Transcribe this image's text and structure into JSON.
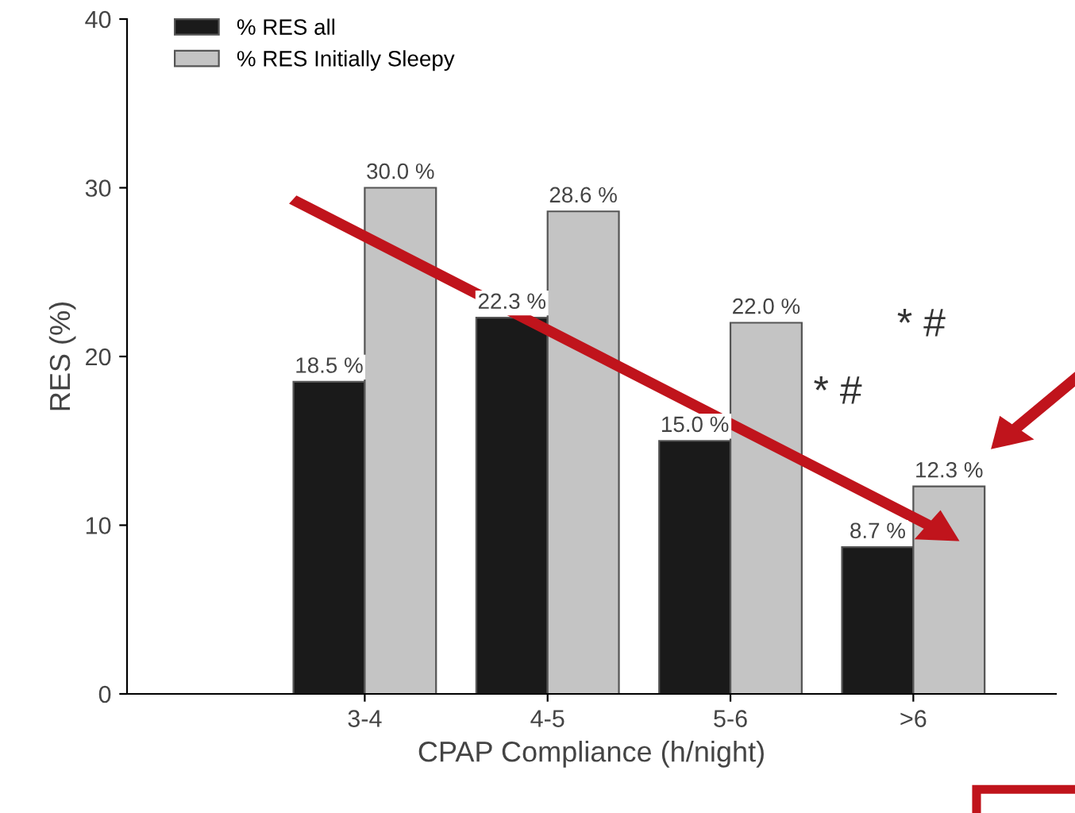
{
  "chart_data": {
    "type": "bar",
    "xlabel": "CPAP Compliance (h/night)",
    "ylabel": "RES (%)",
    "categories": [
      "3-4",
      "4-5",
      "5-6",
      ">6"
    ],
    "series": [
      {
        "name": "% RES all",
        "color": "#1a1a1a",
        "values": [
          18.5,
          22.3,
          15.0,
          8.7
        ],
        "value_labels": [
          "18.5 %",
          "22.3 %",
          "15.0 %",
          "8.7 %"
        ]
      },
      {
        "name": "% RES Initially Sleepy",
        "color": "#c4c4c4",
        "values": [
          30.0,
          28.6,
          22.0,
          12.3
        ],
        "value_labels": [
          "30.0 %",
          "28.6 %",
          "22.0 %",
          "12.3 %"
        ]
      }
    ],
    "ylim": [
      0,
      40
    ],
    "yticks": [
      0,
      10,
      20,
      30,
      40
    ],
    "grid": false,
    "legend": "top left",
    "annotations": [
      "* #",
      "* #"
    ]
  }
}
